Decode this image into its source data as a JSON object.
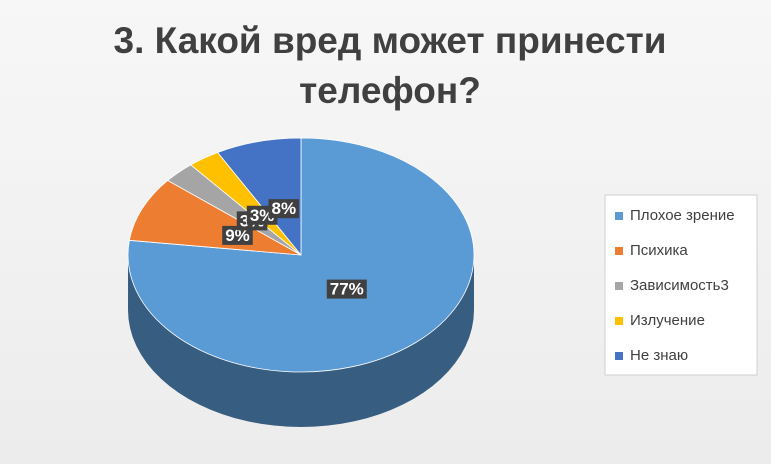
{
  "chart_data": {
    "type": "pie3d",
    "title": "3. Какой вред может принести телефон?",
    "categories": [
      "Плохое зрение",
      "Психика",
      "Зависимость3",
      "Излучение",
      "Не знаю"
    ],
    "values": [
      77,
      9,
      3,
      3,
      8
    ],
    "value_labels": [
      "77%",
      "9%",
      "3%",
      "3%",
      "8%"
    ],
    "colors": [
      "#5b9bd5",
      "#ed7d31",
      "#a5a5a5",
      "#ffc000",
      "#4472c4"
    ],
    "legend": "right"
  }
}
